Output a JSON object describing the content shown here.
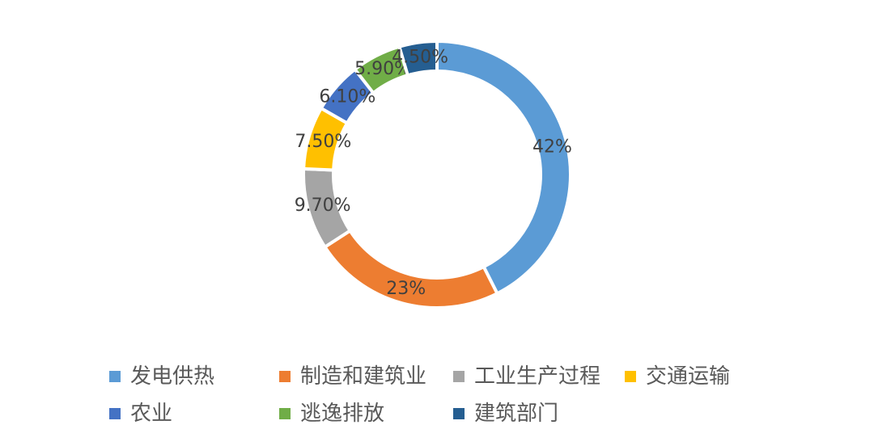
{
  "chart_data": {
    "type": "pie",
    "donut": true,
    "title": "",
    "series": [
      {
        "name": "发电供热",
        "value": 42,
        "label": "42%",
        "color": "#5B9BD5"
      },
      {
        "name": "制造和建筑业",
        "value": 23,
        "label": "23%",
        "color": "#ED7D31"
      },
      {
        "name": "工业生产过程",
        "value": 9.7,
        "label": "9.70%",
        "color": "#A5A5A5"
      },
      {
        "name": "交通运输",
        "value": 7.5,
        "label": "7.50%",
        "color": "#FFC000"
      },
      {
        "name": "农业",
        "value": 6.1,
        "label": "6.10%",
        "color": "#4472C4"
      },
      {
        "name": "逃逸排放",
        "value": 5.9,
        "label": "5.90%",
        "color": "#70AD47"
      },
      {
        "name": "建筑部门",
        "value": 4.5,
        "label": "4.50%",
        "color": "#255E91"
      }
    ],
    "legend_position": "bottom",
    "label_color": "#404040"
  }
}
